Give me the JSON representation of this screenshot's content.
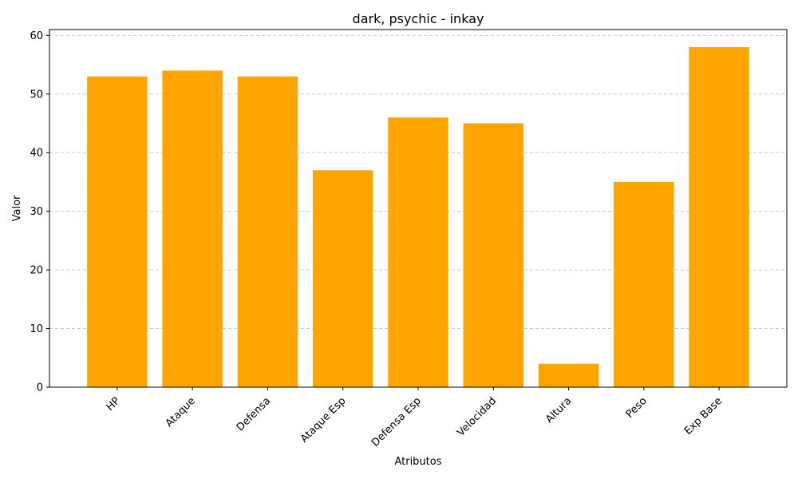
{
  "chart_data": {
    "type": "bar",
    "title": "dark, psychic - inkay",
    "xlabel": "Atributos",
    "ylabel": "Valor",
    "categories": [
      "HP",
      "Ataque",
      "Defensa",
      "Ataque Esp",
      "Defensa Esp",
      "Velocidad",
      "Altura",
      "Peso",
      "Exp Base"
    ],
    "values": [
      53,
      54,
      53,
      37,
      46,
      45,
      4,
      35,
      58
    ],
    "ylim": [
      0,
      61
    ],
    "yticks": [
      0,
      10,
      20,
      30,
      40,
      50,
      60
    ],
    "grid": {
      "y": true,
      "x": false,
      "style": "dashed"
    },
    "legend": "none",
    "colors": {
      "bar": "#FFA500",
      "grid": "#cccccc",
      "axis": "#000000"
    }
  }
}
